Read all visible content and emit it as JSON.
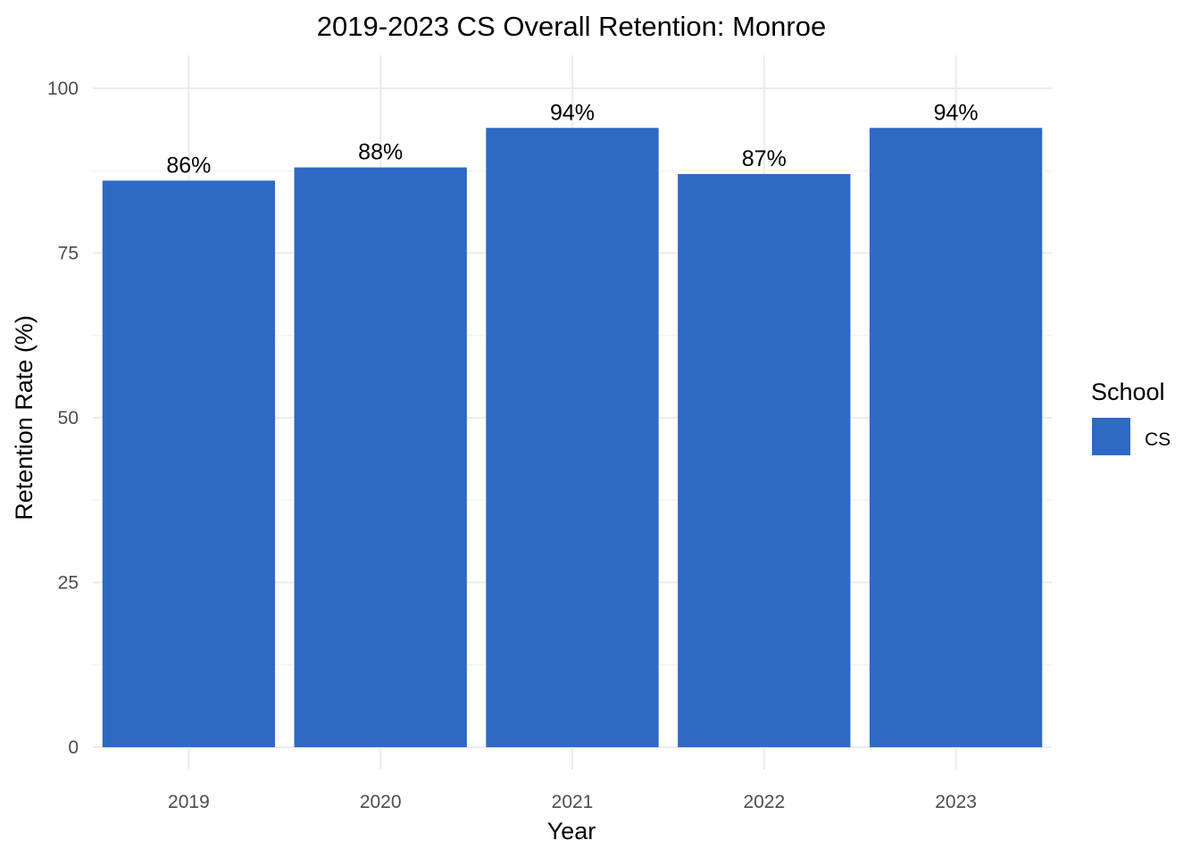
{
  "chart_data": {
    "type": "bar",
    "title": "2019-2023 CS Overall Retention: Monroe",
    "xlabel": "Year",
    "ylabel": "Retention Rate (%)",
    "categories": [
      "2019",
      "2020",
      "2021",
      "2022",
      "2023"
    ],
    "series": [
      {
        "name": "CS",
        "values": [
          86,
          88,
          94,
          87,
          94
        ],
        "color": "#2E69C4"
      }
    ],
    "data_labels": [
      "86%",
      "88%",
      "94%",
      "87%",
      "94%"
    ],
    "ylim": [
      0,
      100
    ],
    "yticks": [
      0,
      25,
      50,
      75,
      100
    ],
    "ytick_labels": [
      "0",
      "25",
      "50",
      "75",
      "100"
    ],
    "grid": true,
    "legend": {
      "title": "School",
      "entries": [
        "CS"
      ],
      "position": "right"
    }
  }
}
